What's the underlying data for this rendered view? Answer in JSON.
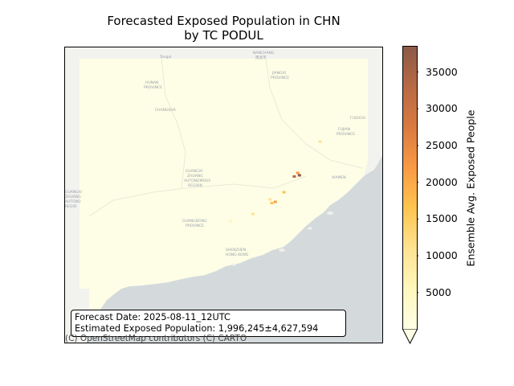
{
  "title_line1": "Forecasted Exposed Population in CHN",
  "title_line2": "by TC PODUL",
  "info": {
    "forecast_date": "Forecast Date: 2025-08-11_12UTC",
    "exposed_population": "Estimated Exposed Population: 1,996,245±4,627,594"
  },
  "attribution": "(C) OpenStreetMap contributors (C) CARTO",
  "basemap_labels": {
    "top1": "Tongul",
    "top2": "NANCHANG",
    "top3": "南昌市",
    "hunan": "HUNAN",
    "hunan_prov": "PROVINCE",
    "jiangxi": "JIANGXI",
    "jiangxi_prov": "PROVINCE",
    "fujian": "FUJIAN",
    "fujian_prov": "PROVINCE",
    "guangdong": "GUANGDONG",
    "guangdong_prov": "PROVINCE",
    "guangxi1": "GUANGXI",
    "guangxi2": "ZHUANG",
    "guangxi3": "AUTONOMOUS",
    "guangxi4": "REGION",
    "left_region1": "GUANGXI",
    "left_region2": "ZHUANG",
    "left_region3": "AUTONO",
    "left_region4": "REGIO",
    "changsha": "CHANGSHA",
    "city_a": "FUZHOU",
    "city_b": "XIAMEN",
    "city_c": "SHENZHEN",
    "city_d": "HONG KONG"
  },
  "colorbar": {
    "label": "Ensemble Avg. Exposed People",
    "vmin": 0,
    "vmax": 38500,
    "ticks": [
      5000,
      10000,
      15000,
      20000,
      25000,
      30000,
      35000
    ],
    "extend": "min",
    "colors": [
      "#ffffe5",
      "#fff7bc",
      "#fee391",
      "#fec44f",
      "#f99a45",
      "#d97a40",
      "#b86a45",
      "#8c5a46"
    ]
  },
  "hotspots": [
    {
      "lon": 118.1,
      "lat": 24.5,
      "value": 38000,
      "color": "#8c5a46"
    },
    {
      "lon": 117.8,
      "lat": 24.45,
      "value": 30000,
      "color": "#b86a45"
    },
    {
      "lon": 118.0,
      "lat": 24.6,
      "value": 22000,
      "color": "#f99a45"
    },
    {
      "lon": 117.2,
      "lat": 23.8,
      "value": 15000,
      "color": "#fec44f"
    },
    {
      "lon": 116.7,
      "lat": 23.4,
      "value": 18000,
      "color": "#f5a040"
    },
    {
      "lon": 116.5,
      "lat": 23.35,
      "value": 12000,
      "color": "#fec44f"
    },
    {
      "lon": 116.4,
      "lat": 23.5,
      "value": 9000,
      "color": "#fee391"
    },
    {
      "lon": 115.4,
      "lat": 22.9,
      "value": 8000,
      "color": "#fee391"
    },
    {
      "lon": 119.3,
      "lat": 25.9,
      "value": 6000,
      "color": "#fee391"
    },
    {
      "lon": 114.1,
      "lat": 22.6,
      "value": 5000,
      "color": "#fff7bc"
    }
  ]
}
